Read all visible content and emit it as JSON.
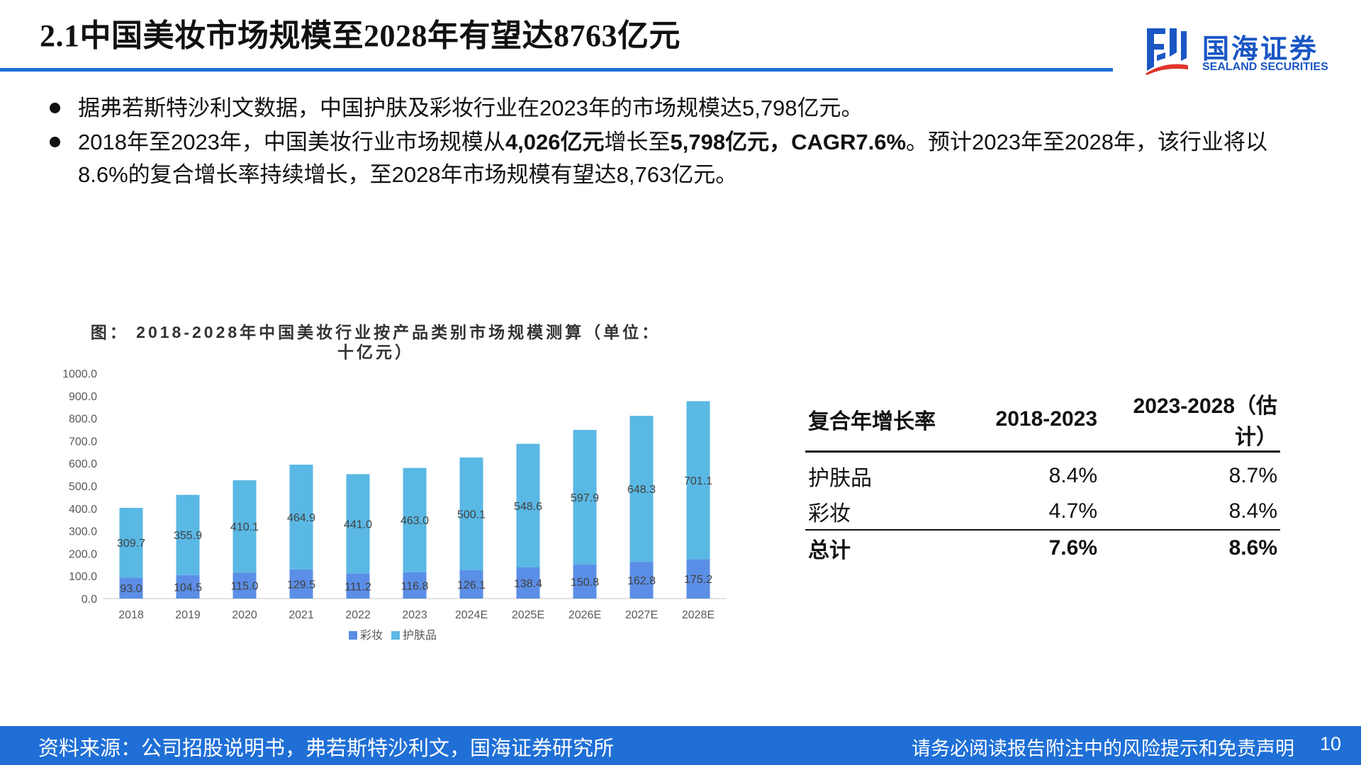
{
  "page": {
    "title": "2.1中国美妆市场规模至2028年有望达8763亿元",
    "page_number": "10"
  },
  "logo": {
    "name_cn": "国海证券",
    "name_en": "SEALAND SECURITIES",
    "colors": {
      "blue": "#1a56c4",
      "red": "#e0342b"
    }
  },
  "bullets": {
    "b1": "据弗若斯特沙利文数据，中国护肤及彩妆行业在2023年的市场规模达5,798亿元。",
    "b2_pre": "2018年至2023年，中国美妆行业市场规模从",
    "b2_v1": "4,026亿元",
    "b2_mid": "增长至",
    "b2_v2": "5,798亿元，CAGR7.6%",
    "b2_post": "。预计2023年至2028年，该行业将以8.6%的复合增长率持续增长，至2028年市场规模有望达8,763亿元。"
  },
  "chart_title": {
    "line1": "图： 2018-2028年中国美妆行业按产品类别市场规模测算（单位：",
    "line2": "十亿元）"
  },
  "chart_data": {
    "type": "bar",
    "stacked": true,
    "categories": [
      "2018",
      "2019",
      "2020",
      "2021",
      "2022",
      "2023",
      "2024E",
      "2025E",
      "2026E",
      "2027E",
      "2028E"
    ],
    "series": [
      {
        "name": "彩妆",
        "color": "#5b8ee6",
        "values": [
          93.0,
          104.5,
          115.0,
          129.5,
          111.2,
          116.8,
          126.1,
          138.4,
          150.8,
          162.8,
          175.2
        ]
      },
      {
        "name": "护肤品",
        "color": "#5ab8e4",
        "values": [
          309.7,
          355.9,
          410.1,
          464.9,
          441.0,
          463.0,
          500.1,
          548.6,
          597.9,
          648.3,
          701.1
        ]
      }
    ],
    "yticks": [
      "0.0",
      "100.0",
      "200.0",
      "300.0",
      "400.0",
      "500.0",
      "600.0",
      "700.0",
      "800.0",
      "900.0",
      "1000.0"
    ],
    "ylim": [
      0,
      1000
    ],
    "legend_position": "bottom",
    "grid": false
  },
  "cagr_table": {
    "headers": [
      "复合年增长率",
      "2018-2023",
      "2023-2028（估计）"
    ],
    "rows": [
      {
        "label": "护肤品",
        "v1": "8.4%",
        "v2": "8.7%"
      },
      {
        "label": "彩妆",
        "v1": "4.7%",
        "v2": "8.4%"
      }
    ],
    "total": {
      "label": "总计",
      "v1": "7.6%",
      "v2": "8.6%"
    }
  },
  "footer": {
    "source": "资料来源：公司招股说明书，弗若斯特沙利文，国海证券研究所",
    "disclaimer": "请务必阅读报告附注中的风险提示和免责声明",
    "bg_color": "#1f6fd6"
  }
}
